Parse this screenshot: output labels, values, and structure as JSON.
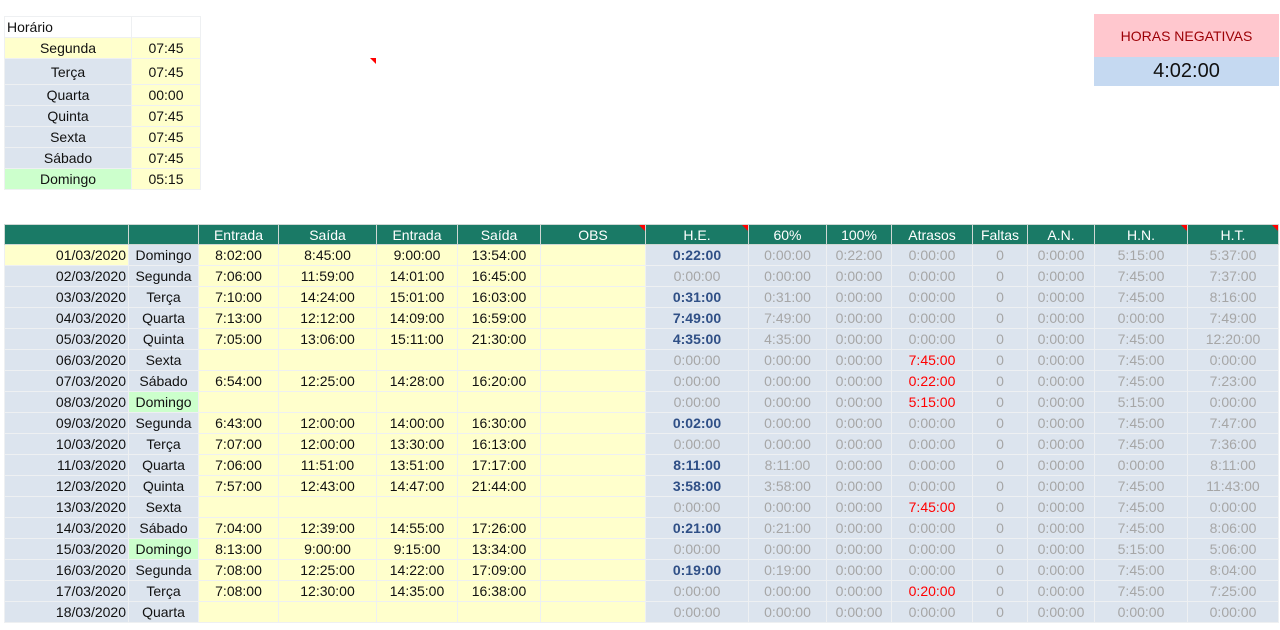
{
  "schedule": {
    "title": "Horário",
    "rows": [
      {
        "day": "Segunda",
        "hours": "07:45",
        "color": "yellow"
      },
      {
        "day": "Terça",
        "hours": "07:45",
        "color": "blue"
      },
      {
        "day": "Quarta",
        "hours": "00:00",
        "color": "blue"
      },
      {
        "day": "Quinta",
        "hours": "07:45",
        "color": "blue"
      },
      {
        "day": "Sexta",
        "hours": "07:45",
        "color": "blue"
      },
      {
        "day": "Sábado",
        "hours": "07:45",
        "color": "blue"
      },
      {
        "day": "Domingo",
        "hours": "05:15",
        "color": "green"
      }
    ]
  },
  "negative_hours": {
    "label": "HORAS NEGATIVAS",
    "value": "4:02:00"
  },
  "table": {
    "headers": [
      "",
      "",
      "Entrada",
      "Saída",
      "Entrada",
      "Saída",
      "OBS",
      "H.E.",
      "60%",
      "100%",
      "Atrasos",
      "Faltas",
      "A.N.",
      "H.N.",
      "H.T."
    ],
    "rows": [
      [
        "01/03/2020",
        "Domingo",
        "8:02:00",
        "8:45:00",
        "9:00:00",
        "13:54:00",
        "",
        "0:22:00",
        "0:00:00",
        "0:22:00",
        "0:00:00",
        "0",
        "0:00:00",
        "5:15:00",
        "5:37:00"
      ],
      [
        "02/03/2020",
        "Segunda",
        "7:06:00",
        "11:59:00",
        "14:01:00",
        "16:45:00",
        "",
        "0:00:00",
        "0:00:00",
        "0:00:00",
        "0:00:00",
        "0",
        "0:00:00",
        "7:45:00",
        "7:37:00"
      ],
      [
        "03/03/2020",
        "Terça",
        "7:10:00",
        "14:24:00",
        "15:01:00",
        "16:03:00",
        "",
        "0:31:00",
        "0:31:00",
        "0:00:00",
        "0:00:00",
        "0",
        "0:00:00",
        "7:45:00",
        "8:16:00"
      ],
      [
        "04/03/2020",
        "Quarta",
        "7:13:00",
        "12:12:00",
        "14:09:00",
        "16:59:00",
        "",
        "7:49:00",
        "7:49:00",
        "0:00:00",
        "0:00:00",
        "0",
        "0:00:00",
        "0:00:00",
        "7:49:00"
      ],
      [
        "05/03/2020",
        "Quinta",
        "7:05:00",
        "13:06:00",
        "15:11:00",
        "21:30:00",
        "",
        "4:35:00",
        "4:35:00",
        "0:00:00",
        "0:00:00",
        "0",
        "0:00:00",
        "7:45:00",
        "12:20:00"
      ],
      [
        "06/03/2020",
        "Sexta",
        "",
        "",
        "",
        "",
        "",
        "0:00:00",
        "0:00:00",
        "0:00:00",
        "7:45:00",
        "0",
        "0:00:00",
        "7:45:00",
        "0:00:00"
      ],
      [
        "07/03/2020",
        "Sábado",
        "6:54:00",
        "12:25:00",
        "14:28:00",
        "16:20:00",
        "",
        "0:00:00",
        "0:00:00",
        "0:00:00",
        "0:22:00",
        "0",
        "0:00:00",
        "7:45:00",
        "7:23:00"
      ],
      [
        "08/03/2020",
        "Domingo",
        "",
        "",
        "",
        "",
        "",
        "0:00:00",
        "0:00:00",
        "0:00:00",
        "5:15:00",
        "0",
        "0:00:00",
        "5:15:00",
        "0:00:00"
      ],
      [
        "09/03/2020",
        "Segunda",
        "6:43:00",
        "12:00:00",
        "14:00:00",
        "16:30:00",
        "",
        "0:02:00",
        "0:00:00",
        "0:00:00",
        "0:00:00",
        "0",
        "0:00:00",
        "7:45:00",
        "7:47:00"
      ],
      [
        "10/03/2020",
        "Terça",
        "7:07:00",
        "12:00:00",
        "13:30:00",
        "16:13:00",
        "",
        "0:00:00",
        "0:00:00",
        "0:00:00",
        "0:00:00",
        "0",
        "0:00:00",
        "7:45:00",
        "7:36:00"
      ],
      [
        "11/03/2020",
        "Quarta",
        "7:06:00",
        "11:51:00",
        "13:51:00",
        "17:17:00",
        "",
        "8:11:00",
        "8:11:00",
        "0:00:00",
        "0:00:00",
        "0",
        "0:00:00",
        "0:00:00",
        "8:11:00"
      ],
      [
        "12/03/2020",
        "Quinta",
        "7:57:00",
        "12:43:00",
        "14:47:00",
        "21:44:00",
        "",
        "3:58:00",
        "3:58:00",
        "0:00:00",
        "0:00:00",
        "0",
        "0:00:00",
        "7:45:00",
        "11:43:00"
      ],
      [
        "13/03/2020",
        "Sexta",
        "",
        "",
        "",
        "",
        "",
        "0:00:00",
        "0:00:00",
        "0:00:00",
        "7:45:00",
        "0",
        "0:00:00",
        "7:45:00",
        "0:00:00"
      ],
      [
        "14/03/2020",
        "Sábado",
        "7:04:00",
        "12:39:00",
        "14:55:00",
        "17:26:00",
        "",
        "0:21:00",
        "0:21:00",
        "0:00:00",
        "0:00:00",
        "0",
        "0:00:00",
        "7:45:00",
        "8:06:00"
      ],
      [
        "15/03/2020",
        "Domingo",
        "8:13:00",
        "9:00:00",
        "9:15:00",
        "13:34:00",
        "",
        "0:00:00",
        "0:00:00",
        "0:00:00",
        "0:00:00",
        "0",
        "0:00:00",
        "5:15:00",
        "5:06:00"
      ],
      [
        "16/03/2020",
        "Segunda",
        "7:08:00",
        "12:25:00",
        "14:22:00",
        "17:09:00",
        "",
        "0:19:00",
        "0:19:00",
        "0:00:00",
        "0:00:00",
        "0",
        "0:00:00",
        "7:45:00",
        "8:04:00"
      ],
      [
        "17/03/2020",
        "Terça",
        "7:08:00",
        "12:30:00",
        "14:35:00",
        "16:38:00",
        "",
        "0:00:00",
        "0:00:00",
        "0:00:00",
        "0:20:00",
        "0",
        "0:00:00",
        "7:45:00",
        "7:25:00"
      ],
      [
        "18/03/2020",
        "Quarta",
        "",
        "",
        "",
        "",
        "",
        "0:00:00",
        "0:00:00",
        "0:00:00",
        "0:00:00",
        "0",
        "0:00:00",
        "0:00:00",
        "0:00:00"
      ]
    ],
    "green_day_rows": [
      7,
      14
    ]
  },
  "colors": {
    "header": "#1a7a66",
    "input_cells": "#ffffcc",
    "computed_cells": "#dce4ee",
    "overtime": "#2f4f86",
    "delay": "#ff0000",
    "negative_bg": "#ffc7ce"
  }
}
